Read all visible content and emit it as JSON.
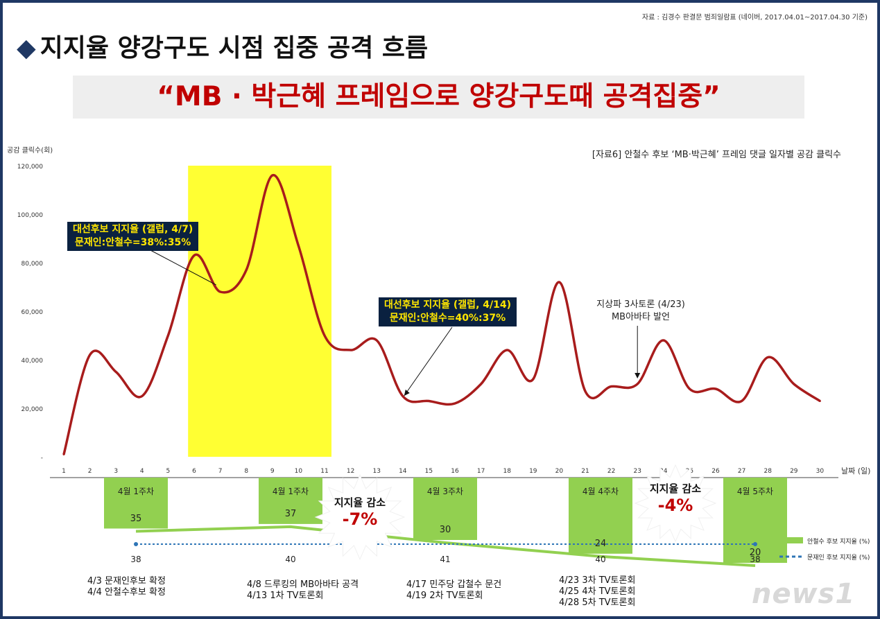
{
  "source_note": "자료 : 김경수 판결문 범죄일람표 (네이버, 2017.04.01~2017.04.30 기준)",
  "title": "지지율 양강구도 시점 집중 공격 흐름",
  "subtitle": "“MB · 박근혜 프레임으로 양강구도때 공격집중”",
  "colors": {
    "line": "#a81c1c",
    "highlight": "#ffff33",
    "green": "#92d050",
    "moon": "#2e75b6",
    "callout_bg": "#0a2140",
    "callout_text": "#ffe600",
    "accent_red": "#c00000"
  },
  "chart_data": {
    "type": "line",
    "caption": "[자료6] 안철수 후보 ‘MB·박근혜’ 프레임 댓글 일자별 공감 클릭수",
    "ylabel": "공감 클릭수(회)",
    "xlabel": "날짜 (일)",
    "ylim": [
      0,
      120000
    ],
    "y_ticks": [
      "-",
      "20,000",
      "40,000",
      "60,000",
      "80,000",
      "100,000",
      "120,000"
    ],
    "x": [
      1,
      2,
      3,
      4,
      5,
      6,
      7,
      8,
      9,
      10,
      11,
      12,
      13,
      14,
      15,
      16,
      17,
      18,
      19,
      20,
      21,
      22,
      23,
      24,
      25,
      26,
      27,
      28,
      29,
      30
    ],
    "series": [
      {
        "values": [
          1000,
          42000,
          35000,
          25000,
          50000,
          83000,
          68000,
          77000,
          116000,
          87000,
          50000,
          44000,
          48000,
          25000,
          23000,
          22000,
          30000,
          44000,
          32000,
          72000,
          27000,
          29000,
          30000,
          48000,
          28000,
          28000,
          23000,
          41000,
          30000,
          23000
        ]
      }
    ],
    "highlight": {
      "from": 5,
      "to": 11
    },
    "callouts": [
      {
        "lines": [
          "대선후보 지지율 (갤럽, 4/7)",
          "문재인:안철수=38%:35%"
        ],
        "point_day": 7,
        "point_value": 68000
      },
      {
        "lines": [
          "대선후보 지지율 (갤럽, 4/14)",
          "문재인:안철수=40%:37%"
        ],
        "point_day": 14,
        "point_value": 24000
      }
    ],
    "annotation": {
      "lines": [
        "지상파 3사토론 (4/23)",
        "MB아바타 발언"
      ],
      "point_day": 23,
      "point_value": 30000
    },
    "weeks": [
      {
        "label": "4월 1주차",
        "ahn": 35,
        "moon": 38
      },
      {
        "label": "4월 1주차",
        "ahn": 37,
        "moon": 40
      },
      {
        "label": "4월 3주차",
        "ahn": 30,
        "moon": 41
      },
      {
        "label": "4월 4주차",
        "ahn": 24,
        "moon": 40
      },
      {
        "label": "4월 5주차",
        "ahn": 20,
        "moon": 38
      }
    ],
    "bursts": [
      {
        "label": "지지율 감소",
        "value": "-7%"
      },
      {
        "label": "지지율 감소",
        "value": "-4%"
      }
    ],
    "legend": [
      {
        "name": "안철수 후보 지지율 (%)",
        "color": "#92d050",
        "style": "bar"
      },
      {
        "name": "문재인 후보 지지율 (%)",
        "color": "#2e75b6",
        "style": "dotted"
      }
    ]
  },
  "events": [
    [
      "4/3 문재인후보 확정",
      "4/4 안철수후보 확정"
    ],
    [
      "4/8 드루킹의 MB아바타 공격",
      "4/13 1차 TV토론회"
    ],
    [
      "4/17 민주당 갑철수 문건",
      "4/19 2차 TV토론회"
    ],
    [
      "4/23 3차 TV토론회",
      "4/25 4차 TV토론회",
      "4/28 5차 TV토론회"
    ]
  ],
  "watermark": "news1"
}
